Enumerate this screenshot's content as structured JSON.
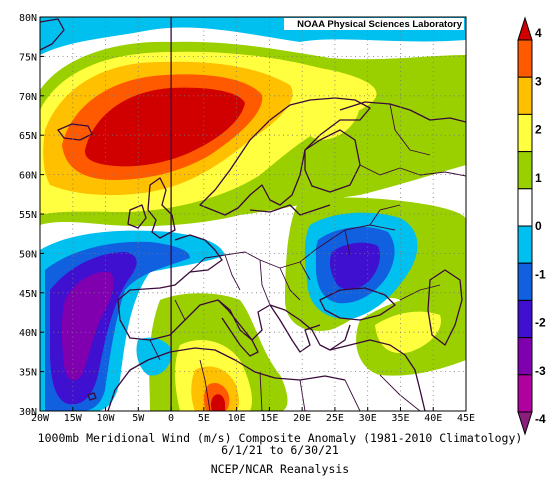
{
  "credit": "NOAA Physical Sciences Laboratory",
  "title": {
    "line1": "1000mb Meridional Wind (m/s) Composite Anomaly (1981-2010 Climatology)",
    "line2": "6/1/21 to 6/30/21",
    "line3": "NCEP/NCAR Reanalysis"
  },
  "axes": {
    "lon_labels": [
      "20W",
      "15W",
      "10W",
      "5W",
      "0",
      "5E",
      "10E",
      "15E",
      "20E",
      "25E",
      "30E",
      "35E",
      "40E",
      "45E"
    ],
    "lat_labels": [
      "80N",
      "75N",
      "70N",
      "65N",
      "60N",
      "55N",
      "50N",
      "45N",
      "40N",
      "35N",
      "30N"
    ]
  },
  "colorbar": {
    "labels": [
      "4",
      "3",
      "2",
      "1",
      "0",
      "-1",
      "-2",
      "-3",
      "-4"
    ],
    "colors": [
      "#d00000",
      "#ff5a00",
      "#ffc000",
      "#ffff40",
      "#9ad000",
      "#ffffff",
      "#00c0f0",
      "#1060e0",
      "#4010d0",
      "#8000b0",
      "#b000a0",
      "#8a1f7e"
    ]
  },
  "colors": {
    "coast": "#3a0a3a",
    "grid": "#777777",
    "zero_meridian": "#3a0a3a"
  },
  "map_extent": {
    "lon": [
      -20,
      45
    ],
    "lat": [
      30,
      80
    ]
  }
}
